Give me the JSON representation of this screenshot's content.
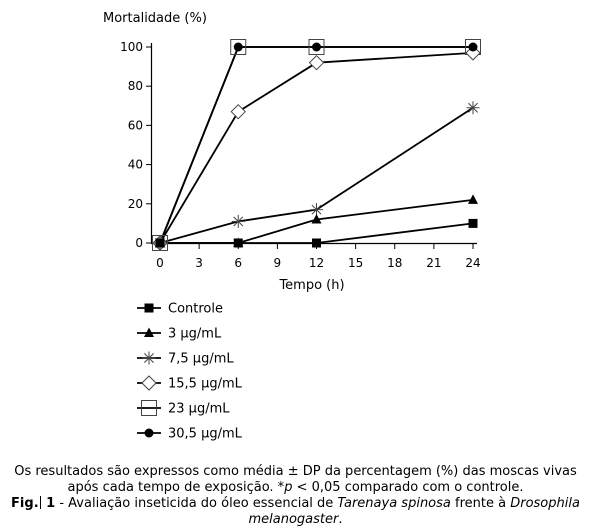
{
  "chart_data": {
    "type": "line",
    "ylabel": "Mortalidade (%)",
    "xlabel": "Tempo (h)",
    "x": [
      0,
      6,
      12,
      24
    ],
    "xticks": [
      0,
      3,
      6,
      9,
      12,
      15,
      18,
      21,
      24
    ],
    "yticks": [
      0,
      20,
      40,
      60,
      80,
      100
    ],
    "xlim": [
      0,
      24
    ],
    "ylim": [
      0,
      100
    ],
    "grid": false,
    "legend_position": "below plot",
    "series": [
      {
        "name": "Controle",
        "marker": "square-filled",
        "values": [
          0,
          0,
          0,
          10
        ]
      },
      {
        "name": "3 μg/mL",
        "marker": "triangle",
        "values": [
          0,
          0,
          12,
          22
        ]
      },
      {
        "name": "7,5 μg/mL",
        "marker": "asterisk",
        "values": [
          0,
          11,
          17,
          69
        ]
      },
      {
        "name": "15,5 μg/mL",
        "marker": "diamond-open",
        "values": [
          0,
          67,
          92,
          97
        ]
      },
      {
        "name": "23 μg/mL",
        "marker": "square-open",
        "values": [
          0,
          100,
          100,
          100
        ]
      },
      {
        "name": "30,5 μg/mL",
        "marker": "circle-filled",
        "values": [
          0,
          100,
          100,
          100
        ]
      }
    ]
  },
  "caption": {
    "notes_line1": "Os resultados são expressos como média ± DP da percentagem (%) das moscas vivas",
    "notes_line2a": "após cada tempo de exposição. *",
    "notes_p": "p",
    "notes_line2b": " < 0,05 comparado com o controle.",
    "fig_label_a": "Fig.",
    "fig_label_b": " 1",
    "title_a": " - Avaliação inseticida do óleo essencial de ",
    "title_species": "Tarenaya spinosa",
    "title_b": " frente à ",
    "title_genus": "Drosophila",
    "title_species2": "melanogaster",
    "title_end": "."
  }
}
